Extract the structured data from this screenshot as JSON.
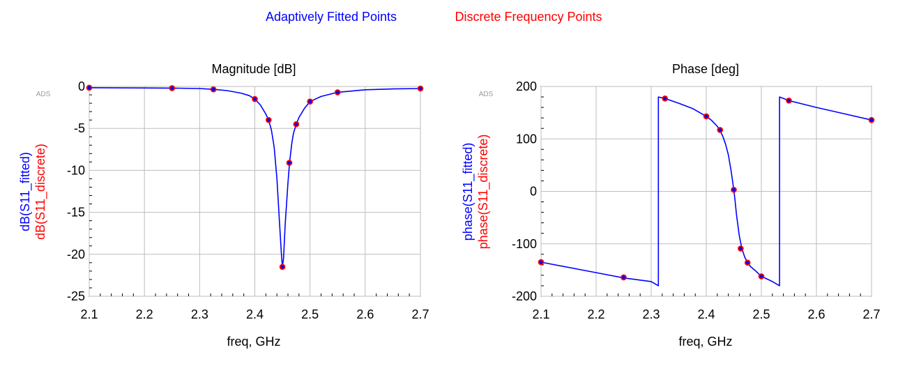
{
  "legend": {
    "fitted_label": "Adaptively Fitted Points",
    "discrete_label": "Discrete Frequency Points",
    "fitted_color": "#0000ff",
    "discrete_color": "#ff0000"
  },
  "chart_data": [
    {
      "type": "line",
      "title": "Magnitude [dB]",
      "xlabel": "freq, GHz",
      "ylabel_series": [
        "dB(S11_fitted)",
        "dB(S11_discrete)"
      ],
      "watermark": "ADS",
      "xlim": [
        2.1,
        2.7
      ],
      "ylim": [
        -25,
        0
      ],
      "xticks": [
        2.1,
        2.2,
        2.3,
        2.4,
        2.5,
        2.6,
        2.7
      ],
      "yticks": [
        0,
        -5,
        -10,
        -15,
        -20,
        -25
      ],
      "grid": true,
      "series": [
        {
          "name": "dB(S11_fitted)",
          "color": "#0000ff",
          "style": "line",
          "x": [
            2.1,
            2.2,
            2.25,
            2.3,
            2.325,
            2.35,
            2.375,
            2.39,
            2.4,
            2.41,
            2.42,
            2.425,
            2.43,
            2.435,
            2.44,
            2.445,
            2.448,
            2.45,
            2.452,
            2.455,
            2.46,
            2.463,
            2.467,
            2.47,
            2.475,
            2.48,
            2.49,
            2.5,
            2.52,
            2.55,
            2.6,
            2.65,
            2.7
          ],
          "y": [
            -0.15,
            -0.18,
            -0.2,
            -0.25,
            -0.35,
            -0.5,
            -0.8,
            -1.1,
            -1.5,
            -2.2,
            -3.3,
            -4.0,
            -5.2,
            -7.2,
            -11.0,
            -16.5,
            -19.8,
            -21.5,
            -20.5,
            -16.5,
            -11.5,
            -9.0,
            -6.8,
            -5.6,
            -4.5,
            -3.7,
            -2.6,
            -1.8,
            -1.2,
            -0.7,
            -0.4,
            -0.3,
            -0.25
          ]
        },
        {
          "name": "dB(S11_discrete)",
          "color": "#ff0000",
          "style": "markers",
          "x": [
            2.1,
            2.25,
            2.325,
            2.4,
            2.425,
            2.45,
            2.4625,
            2.475,
            2.5,
            2.55,
            2.7
          ],
          "y": [
            -0.15,
            -0.2,
            -0.35,
            -1.5,
            -4.0,
            -21.5,
            -9.1,
            -4.5,
            -1.8,
            -0.7,
            -0.25
          ]
        }
      ]
    },
    {
      "type": "line",
      "title": "Phase [deg]",
      "xlabel": "freq, GHz",
      "ylabel_series": [
        "phase(S11_fitted)",
        "phase(S11_discrete)"
      ],
      "watermark": "ADS",
      "xlim": [
        2.1,
        2.7
      ],
      "ylim": [
        -200,
        200
      ],
      "xticks": [
        2.1,
        2.2,
        2.3,
        2.4,
        2.5,
        2.6,
        2.7
      ],
      "yticks": [
        200,
        100,
        0,
        -100,
        -200
      ],
      "grid": true,
      "series": [
        {
          "name": "phase(S11_fitted)",
          "color": "#0000ff",
          "style": "line",
          "x": [
            2.1,
            2.2,
            2.25,
            2.3,
            2.313,
            2.313,
            2.325,
            2.35,
            2.375,
            2.4,
            2.41,
            2.42,
            2.425,
            2.43,
            2.435,
            2.44,
            2.445,
            2.448,
            2.45,
            2.452,
            2.455,
            2.46,
            2.465,
            2.47,
            2.475,
            2.48,
            2.49,
            2.5,
            2.52,
            2.533,
            2.533,
            2.55,
            2.6,
            2.65,
            2.7
          ],
          "y": [
            -135,
            -155,
            -165,
            -172,
            -180,
            180,
            177,
            168,
            158,
            143,
            135,
            124,
            116,
            105,
            90,
            70,
            40,
            18,
            2,
            -15,
            -45,
            -85,
            -110,
            -126,
            -136,
            -143,
            -152,
            -162,
            -172,
            -180,
            180,
            173,
            160,
            148,
            136
          ]
        },
        {
          "name": "phase(S11_discrete)",
          "color": "#ff0000",
          "style": "markers",
          "x": [
            2.1,
            2.25,
            2.325,
            2.4,
            2.425,
            2.45,
            2.4625,
            2.475,
            2.5,
            2.55,
            2.7
          ],
          "y": [
            -135,
            -164,
            177,
            143,
            117,
            3,
            -109,
            -136,
            -162,
            173,
            136
          ]
        }
      ]
    }
  ]
}
